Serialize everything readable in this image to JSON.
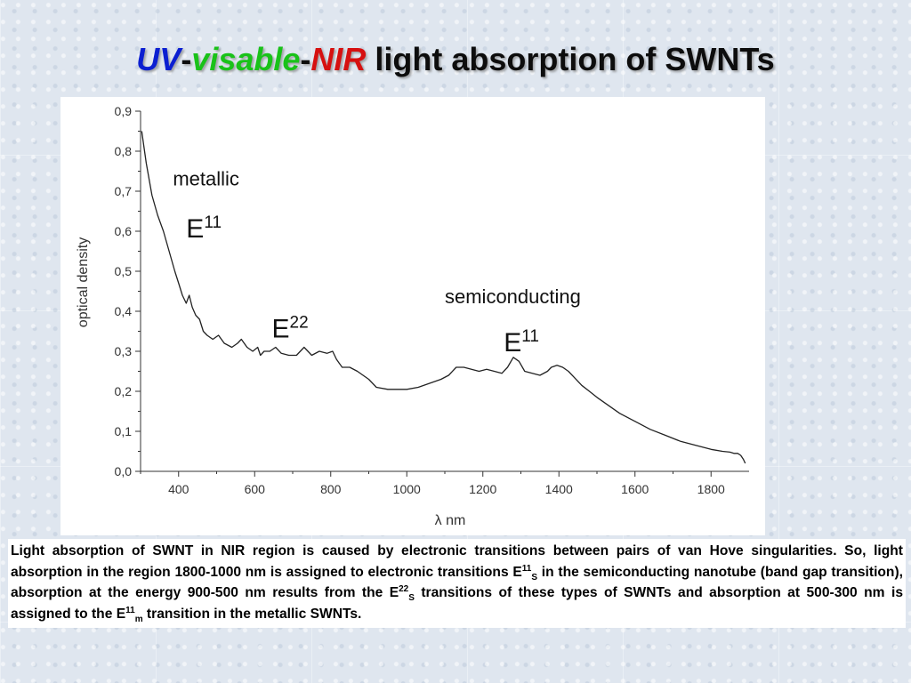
{
  "slide": {
    "title": {
      "uv": "UV",
      "dash1": "-",
      "visable": "visable",
      "dash2": "-",
      "nir": "NIR",
      "rest": " light absorption of SWNTs"
    },
    "colors": {
      "uv": "#0b1fd1",
      "visable": "#19c219",
      "nir": "#d61010",
      "curve": "#222222"
    },
    "description": {
      "p1": "Light absorption of SWNT in NIR region is caused by electronic transitions between pairs of van Hove singularities. So, light absorption in the region 1800-1000 nm is assigned to electronic transitions E",
      "sup1": "11",
      "sub1": "S",
      "p2": " in the semiconducting nanotube (band gap transition), absorption at the energy 900-500 nm results from the E",
      "sup2": "22",
      "sub2": "S",
      "p3": " transitions of these types of SWNTs and absorption at 500-300 nm is assigned to the E",
      "sup3": "11",
      "sub3": "m",
      "p4": " transition in the metallic SWNTs."
    }
  },
  "chart_data": {
    "type": "line",
    "title": "",
    "xlabel": "λ  nm",
    "ylabel": "optical density",
    "xlim": [
      300,
      1900
    ],
    "ylim": [
      0.0,
      0.9
    ],
    "x_ticks": [
      400,
      600,
      800,
      1000,
      1200,
      1400,
      1600,
      1800
    ],
    "x_tick_labels": [
      "400",
      "600",
      "800",
      "1000",
      "1200",
      "1400",
      "1600",
      "1800"
    ],
    "y_ticks": [
      0.0,
      0.1,
      0.2,
      0.3,
      0.4,
      0.5,
      0.6,
      0.7,
      0.8,
      0.9
    ],
    "y_tick_labels": [
      "0,0",
      "0,1",
      "0,2",
      "0,3",
      "0,4",
      "0,5",
      "0,6",
      "0,7",
      "0,8",
      "0,9"
    ],
    "grid": false,
    "legend": "none",
    "series": [
      {
        "x": [
          303,
          315,
          330,
          345,
          360,
          375,
          390,
          400,
          410,
          420,
          428,
          436,
          445,
          455,
          465,
          475,
          490,
          505,
          520,
          540,
          555,
          565,
          580,
          595,
          608,
          615,
          625,
          640,
          655,
          670,
          690,
          710,
          730,
          750,
          770,
          790,
          805,
          815,
          830,
          850,
          870,
          885,
          900,
          920,
          950,
          980,
          1000,
          1030,
          1060,
          1090,
          1110,
          1130,
          1150,
          1170,
          1190,
          1210,
          1230,
          1250,
          1265,
          1280,
          1295,
          1310,
          1330,
          1350,
          1370,
          1380,
          1395,
          1410,
          1425,
          1440,
          1460,
          1480,
          1500,
          1530,
          1560,
          1600,
          1640,
          1680,
          1720,
          1760,
          1800,
          1830,
          1850,
          1860,
          1870,
          1878,
          1885,
          1890
        ],
        "y": [
          0.85,
          0.77,
          0.69,
          0.64,
          0.6,
          0.55,
          0.5,
          0.47,
          0.44,
          0.42,
          0.44,
          0.41,
          0.39,
          0.38,
          0.35,
          0.34,
          0.33,
          0.34,
          0.32,
          0.31,
          0.32,
          0.33,
          0.31,
          0.3,
          0.31,
          0.29,
          0.3,
          0.3,
          0.31,
          0.295,
          0.29,
          0.29,
          0.31,
          0.29,
          0.3,
          0.295,
          0.3,
          0.28,
          0.26,
          0.26,
          0.25,
          0.24,
          0.23,
          0.21,
          0.205,
          0.205,
          0.205,
          0.21,
          0.22,
          0.23,
          0.24,
          0.26,
          0.26,
          0.255,
          0.25,
          0.255,
          0.25,
          0.245,
          0.26,
          0.285,
          0.275,
          0.25,
          0.245,
          0.24,
          0.25,
          0.26,
          0.265,
          0.26,
          0.25,
          0.235,
          0.215,
          0.2,
          0.185,
          0.165,
          0.145,
          0.125,
          0.105,
          0.09,
          0.075,
          0.065,
          0.055,
          0.05,
          0.048,
          0.045,
          0.045,
          0.04,
          0.03,
          0.02
        ]
      }
    ],
    "annotations": [
      {
        "text": "metallic",
        "x": 385,
        "y": 0.715
      },
      {
        "text": "E",
        "sup": "11",
        "x": 420,
        "y": 0.585
      },
      {
        "text": "E",
        "sup": "22",
        "x": 645,
        "y": 0.335
      },
      {
        "text": "semiconducting",
        "x": 1100,
        "y": 0.42
      },
      {
        "text": "E",
        "sup": "11",
        "x": 1255,
        "y": 0.3
      }
    ]
  }
}
